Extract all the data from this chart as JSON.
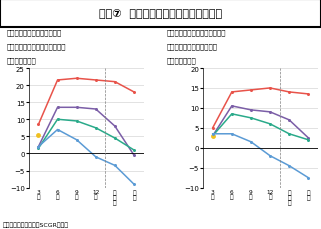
{
  "title": "図表⑦  設備投資額（大規模・製造業）",
  "subtitle_left1": "＜土地投資額を含む、ソフト",
  "subtitle_left2": "ウェア・研究開発投資を除く＞",
  "subtitle_left3": "（前年度比％）",
  "subtitle_right1": "＜ソフトフェア・研究開発投資",
  "subtitle_right2": "を含む、土地投資を除く＞",
  "subtitle_right3": "（前年度比％）",
  "source": "（出所：日本銀行よりSCGR作成）",
  "x_labels": [
    "3\n月",
    "6\n月",
    "9\n月",
    "12\n月",
    "見\n込\nみ",
    "実\n績"
  ],
  "left_chart": {
    "ylim": [
      -10,
      25
    ],
    "yticks": [
      -10,
      -5,
      0,
      5,
      10,
      15,
      20,
      25
    ],
    "series": [
      {
        "color": "#e8534a",
        "values": [
          8.5,
          21.5,
          22.0,
          21.5,
          21.0,
          18.0
        ]
      },
      {
        "color": "#7b5ea7",
        "values": [
          2.0,
          13.5,
          13.5,
          13.0,
          8.0,
          -0.5
        ]
      },
      {
        "color": "#2aaa8a",
        "values": [
          1.5,
          10.0,
          9.5,
          7.5,
          4.5,
          1.0
        ]
      },
      {
        "color": "#f0c020",
        "values": [
          5.5,
          null,
          null,
          null,
          null,
          null
        ]
      },
      {
        "color": "#5b9bd5",
        "values": [
          2.0,
          7.0,
          4.0,
          -1.0,
          -3.5,
          -9.0
        ]
      }
    ]
  },
  "right_chart": {
    "ylim": [
      -10,
      20
    ],
    "yticks": [
      -10,
      -5,
      0,
      5,
      10,
      15,
      20
    ],
    "series": [
      {
        "color": "#e8534a",
        "values": [
          5.0,
          14.0,
          14.5,
          15.0,
          14.0,
          13.5
        ]
      },
      {
        "color": "#7b5ea7",
        "values": [
          3.0,
          10.5,
          9.5,
          9.0,
          7.0,
          2.5
        ]
      },
      {
        "color": "#2aaa8a",
        "values": [
          3.0,
          8.5,
          7.5,
          6.0,
          3.5,
          2.0
        ]
      },
      {
        "color": "#f0c020",
        "values": [
          3.0,
          null,
          null,
          null,
          null,
          null
        ]
      },
      {
        "color": "#5b9bd5",
        "values": [
          3.5,
          3.5,
          1.5,
          -2.0,
          -4.5,
          -7.5
        ]
      }
    ]
  }
}
